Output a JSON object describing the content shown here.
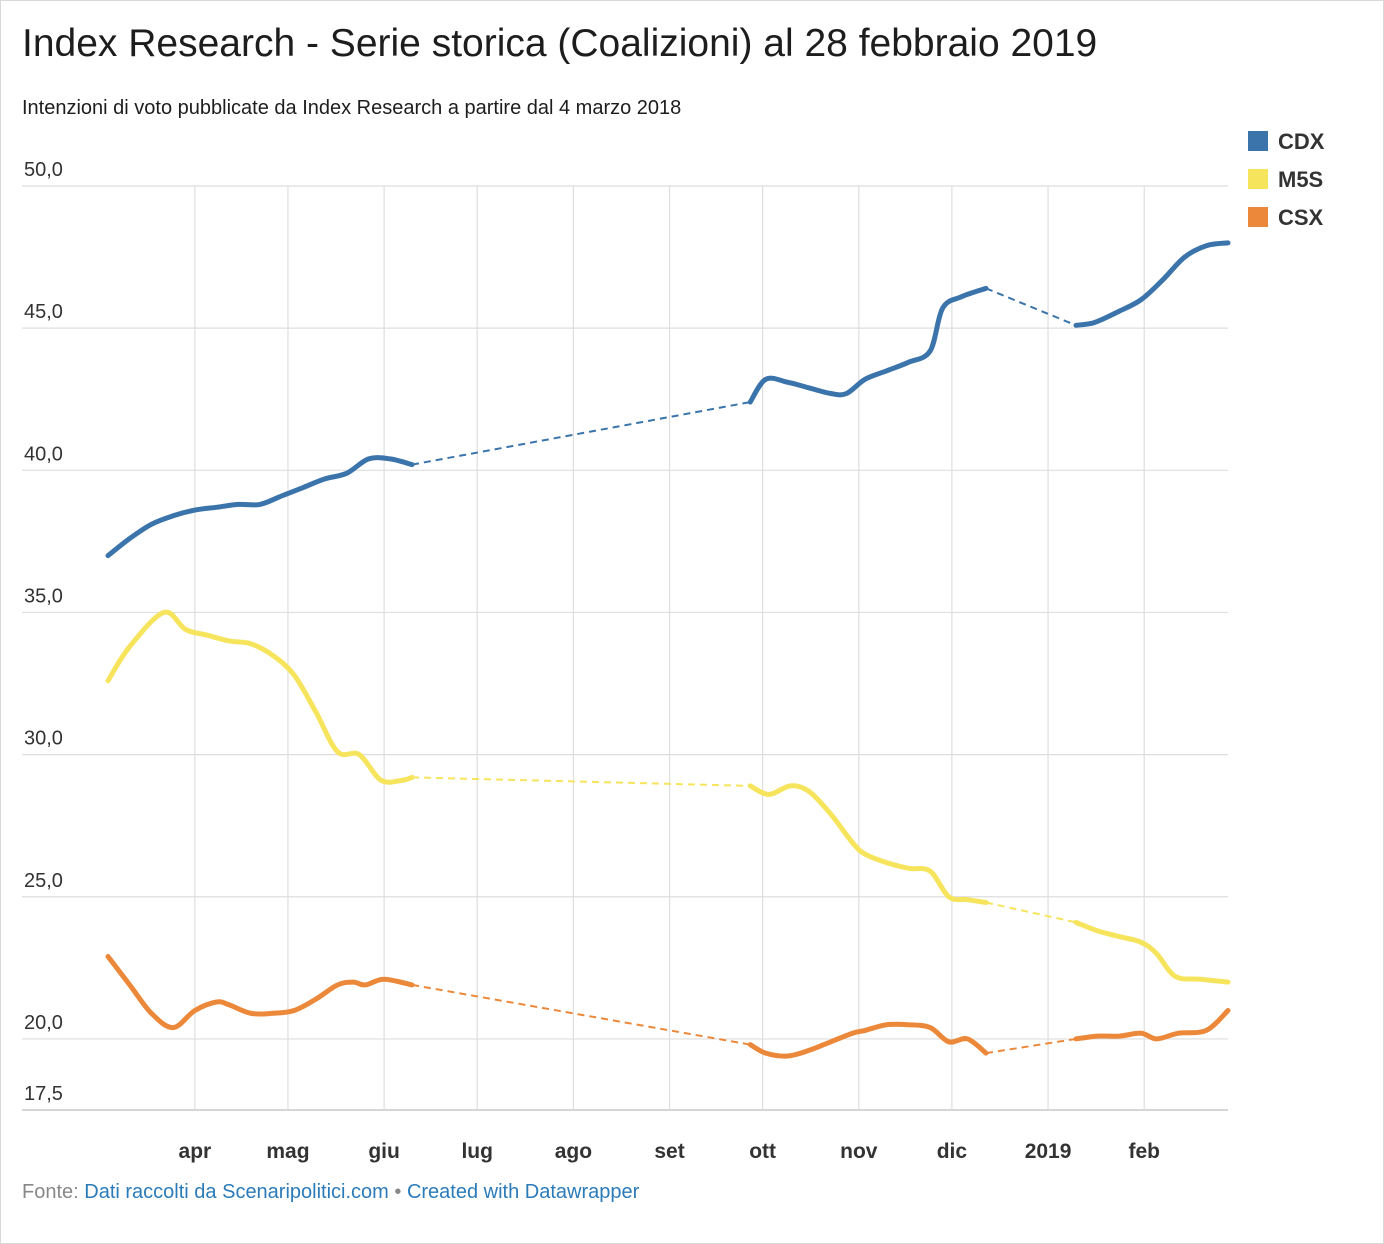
{
  "title": "Index Research - Serie storica (Coalizioni) al 28 febbraio 2019",
  "subtitle": "Intenzioni di voto pubblicate da Index Research a partire dal 4 marzo 2018",
  "footer": {
    "prefix": "Fonte: ",
    "source_link": "Dati raccolti da Scenaripolitici.com",
    "separator": " • ",
    "credit_link": "Created with Datawrapper"
  },
  "chart_data": {
    "type": "line",
    "xlabel": "",
    "ylabel": "",
    "x_range": [
      "2018-03-04",
      "2019-02-28"
    ],
    "ylim": [
      17.5,
      50.0
    ],
    "y_ticks": [
      17.5,
      20.0,
      25.0,
      30.0,
      35.0,
      40.0,
      45.0,
      50.0
    ],
    "y_tick_labels": [
      "17,5",
      "20,0",
      "25,0",
      "30,0",
      "35,0",
      "40,0",
      "45,0",
      "50,0"
    ],
    "x_ticks": [
      "2018-04-01",
      "2018-05-01",
      "2018-06-01",
      "2018-07-01",
      "2018-08-01",
      "2018-09-01",
      "2018-10-01",
      "2018-11-01",
      "2018-12-01",
      "2019-01-01",
      "2019-02-01"
    ],
    "x_tick_labels": [
      "apr",
      "mag",
      "giu",
      "lug",
      "ago",
      "set",
      "ott",
      "nov",
      "dic",
      "2019",
      "feb"
    ],
    "grid": true,
    "legend_position": "top-right",
    "gaps_shown_as_dashed": true,
    "series": [
      {
        "name": "CDX",
        "color": "#3a74aa",
        "segments": [
          [
            [
              "2018-03-04",
              37.0
            ],
            [
              "2018-03-11",
              37.6
            ],
            [
              "2018-03-18",
              38.1
            ],
            [
              "2018-03-25",
              38.4
            ],
            [
              "2018-04-01",
              38.6
            ],
            [
              "2018-04-08",
              38.7
            ],
            [
              "2018-04-15",
              38.8
            ],
            [
              "2018-04-22",
              38.8
            ],
            [
              "2018-04-29",
              39.1
            ],
            [
              "2018-05-06",
              39.4
            ],
            [
              "2018-05-13",
              39.7
            ],
            [
              "2018-05-20",
              39.9
            ],
            [
              "2018-05-27",
              40.4
            ],
            [
              "2018-06-03",
              40.4
            ],
            [
              "2018-06-10",
              40.2
            ]
          ],
          [
            [
              "2018-09-27",
              42.4
            ],
            [
              "2018-10-02",
              43.2
            ],
            [
              "2018-10-09",
              43.1
            ],
            [
              "2018-10-16",
              42.9
            ],
            [
              "2018-10-23",
              42.7
            ],
            [
              "2018-10-28",
              42.7
            ],
            [
              "2018-11-03",
              43.2
            ],
            [
              "2018-11-10",
              43.5
            ],
            [
              "2018-11-17",
              43.8
            ],
            [
              "2018-11-24",
              44.2
            ],
            [
              "2018-11-28",
              45.7
            ],
            [
              "2018-12-04",
              46.1
            ],
            [
              "2018-12-12",
              46.4
            ]
          ],
          [
            [
              "2019-01-10",
              45.1
            ],
            [
              "2019-01-16",
              45.2
            ],
            [
              "2019-01-24",
              45.6
            ],
            [
              "2019-01-31",
              46.0
            ],
            [
              "2019-02-07",
              46.7
            ],
            [
              "2019-02-14",
              47.5
            ],
            [
              "2019-02-21",
              47.9
            ],
            [
              "2019-02-28",
              48.0
            ]
          ]
        ]
      },
      {
        "name": "M5S",
        "color": "#f7e45d",
        "segments": [
          [
            [
              "2018-03-04",
              32.6
            ],
            [
              "2018-03-11",
              33.8
            ],
            [
              "2018-03-22",
              35.0
            ],
            [
              "2018-03-29",
              34.4
            ],
            [
              "2018-04-05",
              34.2
            ],
            [
              "2018-04-12",
              34.0
            ],
            [
              "2018-04-19",
              33.9
            ],
            [
              "2018-04-26",
              33.5
            ],
            [
              "2018-05-03",
              32.8
            ],
            [
              "2018-05-10",
              31.5
            ],
            [
              "2018-05-17",
              30.1
            ],
            [
              "2018-05-24",
              30.0
            ],
            [
              "2018-05-31",
              29.1
            ],
            [
              "2018-06-07",
              29.1
            ],
            [
              "2018-06-10",
              29.2
            ]
          ],
          [
            [
              "2018-09-27",
              28.9
            ],
            [
              "2018-10-03",
              28.6
            ],
            [
              "2018-10-10",
              28.9
            ],
            [
              "2018-10-16",
              28.7
            ],
            [
              "2018-10-23",
              27.9
            ],
            [
              "2018-10-30",
              26.9
            ],
            [
              "2018-11-03",
              26.5
            ],
            [
              "2018-11-10",
              26.2
            ],
            [
              "2018-11-17",
              26.0
            ],
            [
              "2018-11-24",
              25.9
            ],
            [
              "2018-11-30",
              25.0
            ],
            [
              "2018-12-06",
              24.9
            ],
            [
              "2018-12-12",
              24.8
            ]
          ],
          [
            [
              "2019-01-10",
              24.1
            ],
            [
              "2019-01-17",
              23.8
            ],
            [
              "2019-01-24",
              23.6
            ],
            [
              "2019-01-31",
              23.4
            ],
            [
              "2019-02-05",
              23.0
            ],
            [
              "2019-02-11",
              22.2
            ],
            [
              "2019-02-19",
              22.1
            ],
            [
              "2019-02-28",
              22.0
            ]
          ]
        ]
      },
      {
        "name": "CSX",
        "color": "#ec883a",
        "segments": [
          [
            [
              "2018-03-04",
              22.9
            ],
            [
              "2018-03-11",
              21.9
            ],
            [
              "2018-03-18",
              20.9
            ],
            [
              "2018-03-25",
              20.4
            ],
            [
              "2018-04-01",
              21.0
            ],
            [
              "2018-04-08",
              21.3
            ],
            [
              "2018-04-12",
              21.2
            ],
            [
              "2018-04-19",
              20.9
            ],
            [
              "2018-04-26",
              20.9
            ],
            [
              "2018-05-03",
              21.0
            ],
            [
              "2018-05-10",
              21.4
            ],
            [
              "2018-05-17",
              21.9
            ],
            [
              "2018-05-22",
              22.0
            ],
            [
              "2018-05-26",
              21.9
            ],
            [
              "2018-06-01",
              22.1
            ],
            [
              "2018-06-10",
              21.9
            ]
          ],
          [
            [
              "2018-09-27",
              19.8
            ],
            [
              "2018-10-02",
              19.5
            ],
            [
              "2018-10-09",
              19.4
            ],
            [
              "2018-10-16",
              19.6
            ],
            [
              "2018-10-23",
              19.9
            ],
            [
              "2018-10-30",
              20.2
            ],
            [
              "2018-11-03",
              20.3
            ],
            [
              "2018-11-10",
              20.5
            ],
            [
              "2018-11-17",
              20.5
            ],
            [
              "2018-11-24",
              20.4
            ],
            [
              "2018-11-30",
              19.9
            ],
            [
              "2018-12-06",
              20.0
            ],
            [
              "2018-12-12",
              19.5
            ]
          ],
          [
            [
              "2019-01-10",
              20.0
            ],
            [
              "2019-01-17",
              20.1
            ],
            [
              "2019-01-24",
              20.1
            ],
            [
              "2019-01-31",
              20.2
            ],
            [
              "2019-02-05",
              20.0
            ],
            [
              "2019-02-12",
              20.2
            ],
            [
              "2019-02-21",
              20.3
            ],
            [
              "2019-02-28",
              21.0
            ]
          ]
        ]
      }
    ]
  }
}
